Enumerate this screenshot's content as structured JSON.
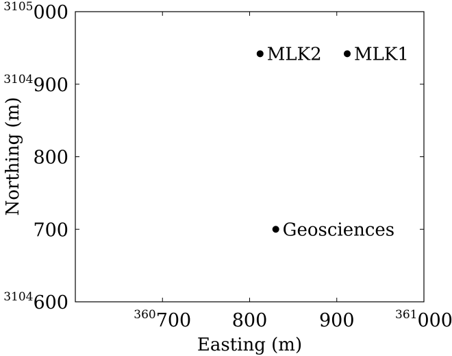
{
  "chart_data": {
    "type": "scatter",
    "xlabel": "Easting (m)",
    "ylabel": "Northing (m)",
    "xlim": [
      360600,
      361000
    ],
    "ylim": [
      3104600,
      3105000
    ],
    "grid": false,
    "points": [
      {
        "label": "MLK2",
        "x": 360812,
        "y": 3104942
      },
      {
        "label": "MLK1",
        "x": 360912,
        "y": 3104942
      },
      {
        "label": "Geosciences",
        "x": 360830,
        "y": 3104700
      }
    ],
    "x_ticks": [
      {
        "sup": "360",
        "main": "700",
        "value": 360700
      },
      {
        "sup": "",
        "main": "800",
        "value": 360800
      },
      {
        "sup": "",
        "main": "900",
        "value": 360900
      },
      {
        "sup": "361",
        "main": "000",
        "value": 361000
      }
    ],
    "y_ticks": [
      {
        "sup": "3104",
        "main": "600",
        "value": 3104600
      },
      {
        "sup": "",
        "main": "700",
        "value": 3104700
      },
      {
        "sup": "",
        "main": "800",
        "value": 3104800
      },
      {
        "sup": "3104",
        "main": "900",
        "value": 3104900
      },
      {
        "sup": "3105",
        "main": "000",
        "value": 3105000
      }
    ]
  }
}
